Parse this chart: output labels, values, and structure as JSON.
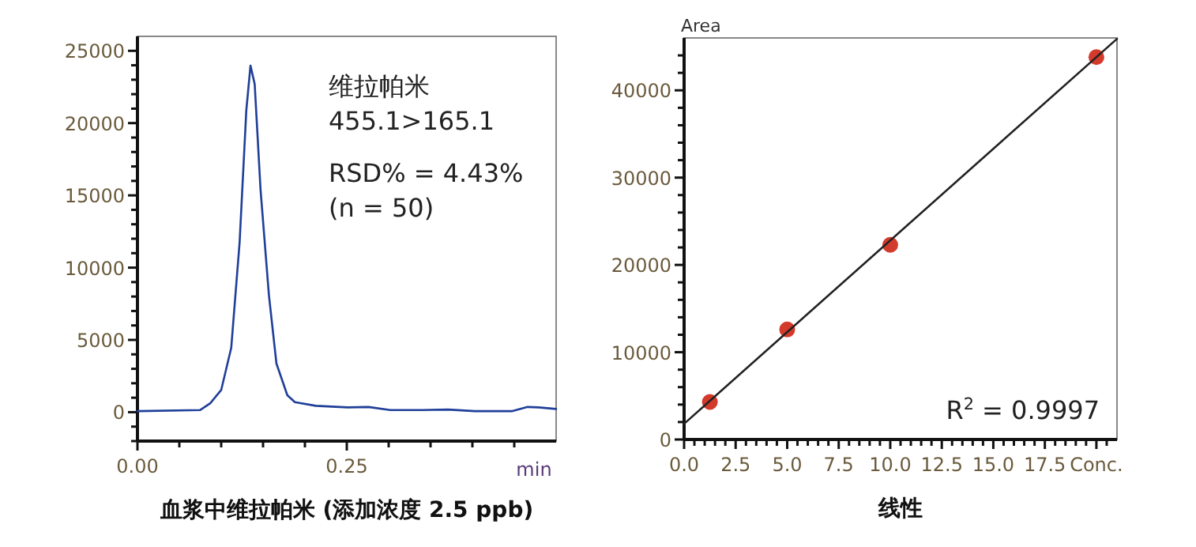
{
  "chart_data": [
    {
      "type": "line",
      "xlabel": "血浆中维拉帕米 (添加浓度 2.5 ppb)",
      "annotations": [
        "维拉帕米",
        "455.1>165.1",
        "RSD% = 4.43%",
        "(n = 50)",
        "min"
      ],
      "xlim": [
        0,
        0.5
      ],
      "ylim": [
        -2000,
        26000
      ],
      "xticks": [
        {
          "value": 0,
          "label": "0.00"
        },
        {
          "value": 0.05,
          "label": null
        },
        {
          "value": 0.1,
          "label": null
        },
        {
          "value": 0.15,
          "label": null
        },
        {
          "value": 0.2,
          "label": null
        },
        {
          "value": 0.25,
          "label": "0.25"
        },
        {
          "value": 0.3,
          "label": null
        },
        {
          "value": 0.35,
          "label": null
        },
        {
          "value": 0.4,
          "label": null
        },
        {
          "value": 0.45,
          "label": null
        }
      ],
      "yticks": [
        {
          "value": -2000,
          "label": null
        },
        {
          "value": -1000,
          "label": null
        },
        0,
        {
          "value": 1000,
          "label": null
        },
        {
          "value": 2000,
          "label": null
        },
        {
          "value": 3000,
          "label": null
        },
        {
          "value": 4000,
          "label": null
        },
        5000,
        {
          "value": 6000,
          "label": null
        },
        {
          "value": 7000,
          "label": null
        },
        {
          "value": 8000,
          "label": null
        },
        {
          "value": 9000,
          "label": null
        },
        10000,
        {
          "value": 11000,
          "label": null
        },
        {
          "value": 12000,
          "label": null
        },
        {
          "value": 13000,
          "label": null
        },
        {
          "value": 14000,
          "label": null
        },
        15000,
        {
          "value": 16000,
          "label": null
        },
        {
          "value": 17000,
          "label": null
        },
        {
          "value": 18000,
          "label": null
        },
        {
          "value": 19000,
          "label": null
        },
        20000,
        {
          "value": 21000,
          "label": null
        },
        {
          "value": 22000,
          "label": null
        },
        {
          "value": 23000,
          "label": null
        },
        {
          "value": 24000,
          "label": null
        },
        25000
      ],
      "marker": "none",
      "line_style": "solid",
      "series": [
        {
          "color": "#1f3f99",
          "x": [
            0,
            0.075,
            0.087,
            0.1,
            0.112,
            0.122,
            0.13,
            0.135,
            0.14,
            0.147,
            0.157,
            0.166,
            0.179,
            0.188,
            0.213,
            0.251,
            0.276,
            0.302,
            0.34,
            0.371,
            0.403,
            0.447,
            0.466,
            0.479,
            0.5
          ],
          "values": [
            70,
            150,
            620,
            1530,
            4450,
            11750,
            20880,
            23980,
            22700,
            15400,
            8100,
            3360,
            1170,
            690,
            440,
            330,
            360,
            150,
            150,
            180,
            70,
            70,
            360,
            330,
            220
          ]
        }
      ]
    },
    {
      "type": "scatter",
      "xlabel": "线性",
      "ylabel": "Area",
      "annotations": [
        "R$^{2}$ = 0.9997"
      ],
      "xlim": [
        0,
        21
      ],
      "ylim": [
        0,
        46000
      ],
      "xticks": [
        {
          "value": 0,
          "label": "0.0"
        },
        {
          "value": 0.5,
          "label": null
        },
        {
          "value": 1,
          "label": null
        },
        {
          "value": 1.5,
          "label": null
        },
        {
          "value": 2,
          "label": null
        },
        {
          "value": 2.5,
          "label": "2.5"
        },
        {
          "value": 3,
          "label": null
        },
        {
          "value": 3.5,
          "label": null
        },
        {
          "value": 4,
          "label": null
        },
        {
          "value": 4.5,
          "label": null
        },
        {
          "value": 5,
          "label": "5.0"
        },
        {
          "value": 5.5,
          "label": null
        },
        {
          "value": 6,
          "label": null
        },
        {
          "value": 6.5,
          "label": null
        },
        {
          "value": 7,
          "label": null
        },
        {
          "value": 7.5,
          "label": "7.5"
        },
        {
          "value": 8,
          "label": null
        },
        {
          "value": 8.5,
          "label": null
        },
        {
          "value": 9,
          "label": null
        },
        {
          "value": 9.5,
          "label": null
        },
        {
          "value": 10,
          "label": "10.0"
        },
        {
          "value": 10.5,
          "label": null
        },
        {
          "value": 11,
          "label": null
        },
        {
          "value": 11.5,
          "label": null
        },
        {
          "value": 12,
          "label": null
        },
        {
          "value": 12.5,
          "label": "12.5"
        },
        {
          "value": 13,
          "label": null
        },
        {
          "value": 13.5,
          "label": null
        },
        {
          "value": 14,
          "label": null
        },
        {
          "value": 14.5,
          "label": null
        },
        {
          "value": 15,
          "label": "15.0"
        },
        {
          "value": 15.5,
          "label": null
        },
        {
          "value": 16,
          "label": null
        },
        {
          "value": 16.5,
          "label": null
        },
        {
          "value": 17,
          "label": null
        },
        {
          "value": 17.5,
          "label": "17.5"
        },
        {
          "value": 18,
          "label": null
        },
        {
          "value": 18.5,
          "label": null
        },
        {
          "value": 19,
          "label": null
        },
        {
          "value": 19.5,
          "label": null
        },
        {
          "value": 20,
          "label": "Conc."
        },
        {
          "value": 20.5,
          "label": null
        }
      ],
      "yticks": [
        0,
        {
          "value": 2000,
          "label": null
        },
        {
          "value": 4000,
          "label": null
        },
        {
          "value": 6000,
          "label": null
        },
        {
          "value": 8000,
          "label": null
        },
        10000,
        {
          "value": 12000,
          "label": null
        },
        {
          "value": 14000,
          "label": null
        },
        {
          "value": 16000,
          "label": null
        },
        {
          "value": 18000,
          "label": null
        },
        20000,
        {
          "value": 22000,
          "label": null
        },
        {
          "value": 24000,
          "label": null
        },
        {
          "value": 26000,
          "label": null
        },
        {
          "value": 28000,
          "label": null
        },
        30000,
        {
          "value": 32000,
          "label": null
        },
        {
          "value": 34000,
          "label": null
        },
        {
          "value": 36000,
          "label": null
        },
        {
          "value": 38000,
          "label": null
        },
        40000,
        {
          "value": 42000,
          "label": null
        },
        {
          "value": 44000,
          "label": null
        }
      ],
      "marker": "circle",
      "series": [
        {
          "color": "#d23b2b",
          "x": [
            1.25,
            5,
            10,
            20
          ],
          "values": [
            4300,
            12600,
            22300,
            43800
          ]
        },
        {
          "type": "line",
          "color": "#222222",
          "line_style": "solid",
          "marker": "none",
          "x": [
            0,
            21
          ],
          "values": [
            1800,
            45900
          ]
        }
      ]
    }
  ]
}
